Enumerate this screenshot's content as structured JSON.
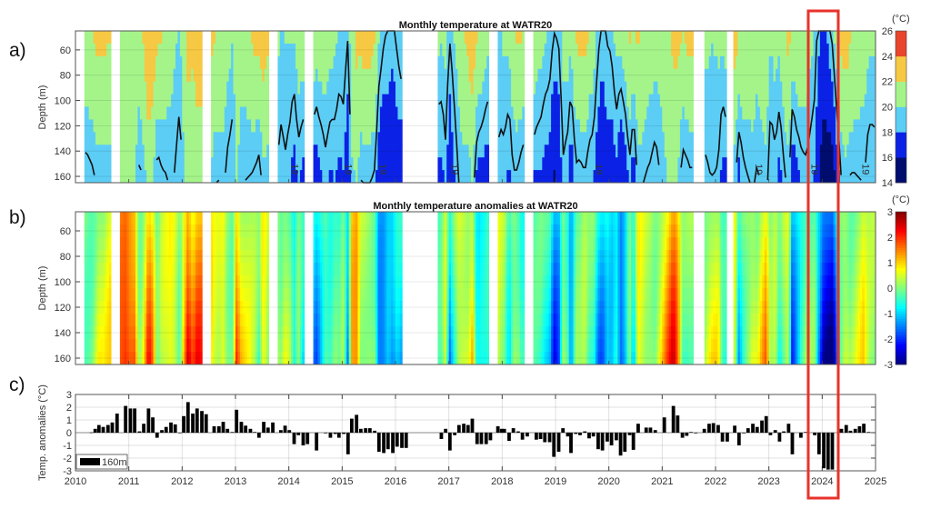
{
  "chart_data": [
    {
      "type": "heatmap",
      "panel_label": "a)",
      "title": "Monthly temperature at WATR20",
      "ylabel": "Depth (m)",
      "yticks": [
        "60",
        "80",
        "100",
        "120",
        "140",
        "160"
      ],
      "ylim": [
        45,
        165
      ],
      "xlim": [
        2010,
        2025
      ],
      "colorbar": {
        "unit": "(°C)",
        "ticks": [
          "26",
          "24",
          "22",
          "20",
          "18",
          "16",
          "14"
        ],
        "levels": [
          14,
          16,
          18,
          20,
          22,
          24,
          26
        ],
        "colors": [
          "#000c6e",
          "#0b22e6",
          "#5ccdf5",
          "#a4f48a",
          "#f7c843",
          "#e8452a"
        ]
      },
      "contour_level": 19,
      "contour_label": "19",
      "data_gaps": [
        [
          2010.0,
          2010.15
        ],
        [
          2010.68,
          2010.85
        ],
        [
          2012.37,
          2012.54
        ],
        [
          2013.62,
          2013.79
        ],
        [
          2014.28,
          2014.45
        ],
        [
          2016.14,
          2016.8
        ],
        [
          2017.75,
          2017.92
        ],
        [
          2018.43,
          2018.57
        ],
        [
          2021.6,
          2021.78
        ],
        [
          2022.2,
          2022.35
        ]
      ]
    },
    {
      "type": "heatmap",
      "panel_label": "b)",
      "title": "Monthly temperature anomalies at WATR20",
      "ylabel": "Depth (m)",
      "yticks": [
        "60",
        "80",
        "100",
        "120",
        "140",
        "160"
      ],
      "ylim": [
        45,
        165
      ],
      "xlim": [
        2010,
        2025
      ],
      "colorbar": {
        "unit": "(°C)",
        "ticks": [
          "3",
          "2",
          "1",
          "0",
          "-1",
          "-2",
          "-3"
        ],
        "range": [
          -3,
          3
        ],
        "colormap": "jet"
      }
    },
    {
      "type": "bar",
      "panel_label": "c)",
      "ylabel": "Temp. anomalies (°C)",
      "yticks": [
        "3",
        "2",
        "1",
        "0",
        "-1",
        "-2",
        "-3"
      ],
      "ylim": [
        -3,
        3
      ],
      "xlim": [
        2010,
        2025
      ],
      "xticks": [
        "2010",
        "2011",
        "2012",
        "2013",
        "2014",
        "2015",
        "2016",
        "2017",
        "2018",
        "2019",
        "2020",
        "2021",
        "2022",
        "2023",
        "2024",
        "2025"
      ],
      "legend": "160m",
      "series": [
        {
          "name": "160m",
          "x": [
            2010.3,
            2010.37,
            2010.44,
            2010.52,
            2010.61,
            2010.69,
            2010.78,
            2010.94,
            2011.03,
            2011.11,
            2011.2,
            2011.28,
            2011.37,
            2011.45,
            2011.53,
            2011.62,
            2011.7,
            2011.79,
            2011.87,
            2011.96,
            2012.03,
            2012.11,
            2012.2,
            2012.28,
            2012.37,
            2012.45,
            2012.6,
            2012.69,
            2012.77,
            2012.85,
            2012.94,
            2013.02,
            2013.11,
            2013.19,
            2013.28,
            2013.36,
            2013.44,
            2013.53,
            2013.61,
            2013.7,
            2013.85,
            2013.93,
            2014.01,
            2014.1,
            2014.18,
            2014.27,
            2014.35,
            2014.52,
            2014.69,
            2014.78,
            2014.87,
            2014.94,
            2015.03,
            2015.11,
            2015.18,
            2015.27,
            2015.35,
            2015.44,
            2015.52,
            2015.61,
            2015.69,
            2015.78,
            2015.86,
            2015.95,
            2016.03,
            2016.12,
            2016.2,
            2016.86,
            2016.94,
            2017.02,
            2017.11,
            2017.19,
            2017.28,
            2017.36,
            2017.44,
            2017.53,
            2017.61,
            2017.7,
            2017.78,
            2017.92,
            2017.99,
            2018.04,
            2018.13,
            2018.21,
            2018.3,
            2018.38,
            2018.47,
            2018.64,
            2018.72,
            2018.8,
            2018.89,
            2018.97,
            2019.06,
            2019.14,
            2019.23,
            2019.29,
            2019.38,
            2019.46,
            2019.55,
            2019.63,
            2019.71,
            2019.8,
            2019.88,
            2019.97,
            2020.05,
            2020.14,
            2020.22,
            2020.3,
            2020.39,
            2020.46,
            2020.55,
            2020.7,
            2020.78,
            2020.87,
            2021.04,
            2021.21,
            2021.29,
            2021.38,
            2021.46,
            2021.54,
            2021.63,
            2021.79,
            2021.88,
            2021.96,
            2022.05,
            2022.13,
            2022.22,
            2022.36,
            2022.44,
            2022.53,
            2022.61,
            2022.7,
            2022.78,
            2022.87,
            2022.95,
            2023.03,
            2023.12,
            2023.2,
            2023.28,
            2023.37,
            2023.44,
            2023.6,
            2023.69,
            2023.86,
            2023.94,
            2024.03,
            2024.11,
            2024.19,
            2024.36,
            2024.45,
            2024.53,
            2024.62,
            2024.7,
            2024.78,
            2024.87
          ],
          "values": [
            0.02,
            0.3,
            0.6,
            0.45,
            0.6,
            0.8,
            1.5,
            2.1,
            1.9,
            1.9,
            0.1,
            0.7,
            1.9,
            1.2,
            -0.4,
            0.2,
            0.45,
            0.8,
            0.65,
            0.0,
            1.3,
            2.4,
            1.5,
            1.9,
            1.7,
            1.45,
            0.5,
            0.5,
            0.85,
            0.3,
            0.05,
            1.8,
            0.85,
            0.55,
            0.3,
            0.05,
            -0.4,
            0.85,
            0.4,
            0.8,
            0.2,
            0.55,
            0.2,
            -0.9,
            -0.2,
            -1.0,
            -0.9,
            -1.4,
            -0.05,
            -0.4,
            -0.1,
            -0.4,
            -0.1,
            -1.7,
            1.1,
            1.4,
            0.3,
            0.35,
            0.35,
            0.15,
            -1.5,
            -1.6,
            -1.3,
            -1.6,
            -1.1,
            -1.2,
            -1.2,
            -0.5,
            0.3,
            -1.4,
            -0.2,
            0.6,
            0.7,
            0.6,
            1.1,
            -0.9,
            -0.9,
            -0.9,
            -0.6,
            0.5,
            0.3,
            0.3,
            -0.65,
            0.35,
            0.1,
            -0.55,
            -0.3,
            -0.55,
            -0.5,
            -0.75,
            -0.75,
            -1.9,
            -1.5,
            0.35,
            -0.3,
            -1.6,
            -0.1,
            -0.2,
            0.1,
            -0.45,
            -0.3,
            -1.3,
            -1.4,
            -0.7,
            -1.0,
            -0.6,
            -1.8,
            -1.5,
            -0.2,
            -1.35,
            0.7,
            0.4,
            0.4,
            0.2,
            1.2,
            2.1,
            1.35,
            -0.4,
            -0.25,
            0.05,
            -0.05,
            0.3,
            0.7,
            0.75,
            0.6,
            -0.7,
            -0.7,
            0.55,
            -1.0,
            -0.05,
            0.35,
            0.7,
            0.45,
            0.95,
            1.3,
            -0.2,
            0.2,
            -0.7,
            0.1,
            0.7,
            -1.7,
            -0.4,
            0.05,
            -0.2,
            -1.7,
            -2.8,
            -2.9,
            -2.9,
            0.3,
            0.6,
            0.15,
            0.3,
            0.5,
            0.7,
            0.05
          ]
        }
      ]
    }
  ],
  "highlight": {
    "color": "#e8322b",
    "period": "2024"
  }
}
